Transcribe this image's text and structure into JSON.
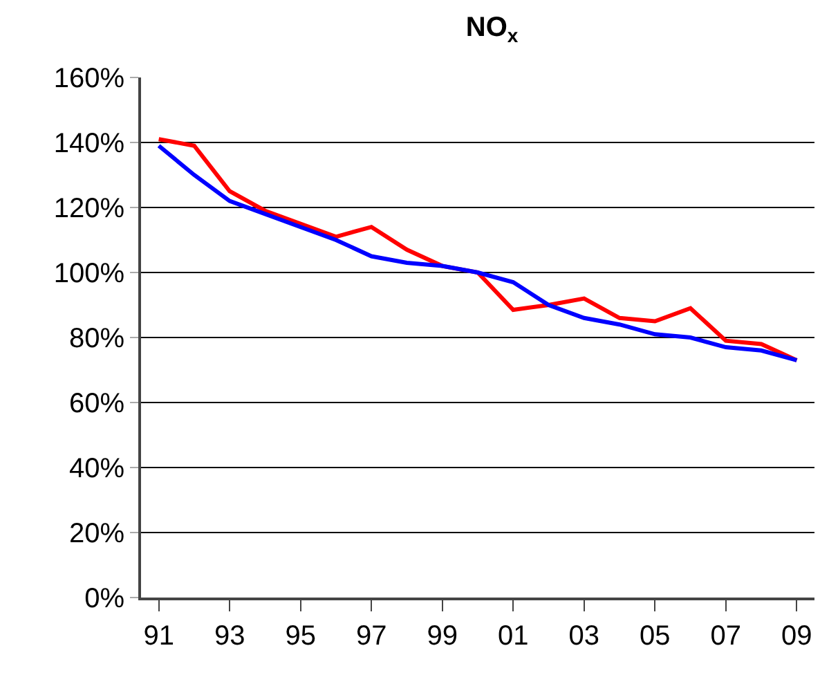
{
  "chart_data": {
    "type": "line",
    "title": "NO$_{x}$",
    "categories": [
      "91",
      null,
      "93",
      null,
      "95",
      null,
      "97",
      null,
      "99",
      null,
      "01",
      null,
      "03",
      null,
      "05",
      null,
      "07",
      null,
      "09"
    ],
    "series": [
      {
        "color": "#ff0000",
        "values": [
          141,
          139,
          125,
          119,
          115,
          111,
          114,
          107,
          102,
          100,
          88.5,
          90,
          92,
          86,
          85,
          89,
          79,
          78,
          73
        ]
      },
      {
        "color": "#0000ff",
        "values": [
          139,
          130,
          122,
          118,
          114,
          110,
          105,
          103,
          102,
          100,
          97,
          90,
          86,
          84,
          81,
          80,
          77,
          76,
          73
        ]
      }
    ],
    "ylim": [
      0,
      160
    ],
    "yticks": [
      {
        "value": 0,
        "label": "0%"
      },
      {
        "value": 20,
        "label": "20%"
      },
      {
        "value": 40,
        "label": "40%"
      },
      {
        "value": 60,
        "label": "60%"
      },
      {
        "value": 80,
        "label": "80%"
      },
      {
        "value": 100,
        "label": "100%"
      },
      {
        "value": 120,
        "label": "120%"
      },
      {
        "value": 140,
        "label": "140%"
      },
      {
        "value": 160,
        "label": "160%"
      }
    ],
    "grid": "y",
    "marker": "none",
    "line_style": "solid"
  }
}
